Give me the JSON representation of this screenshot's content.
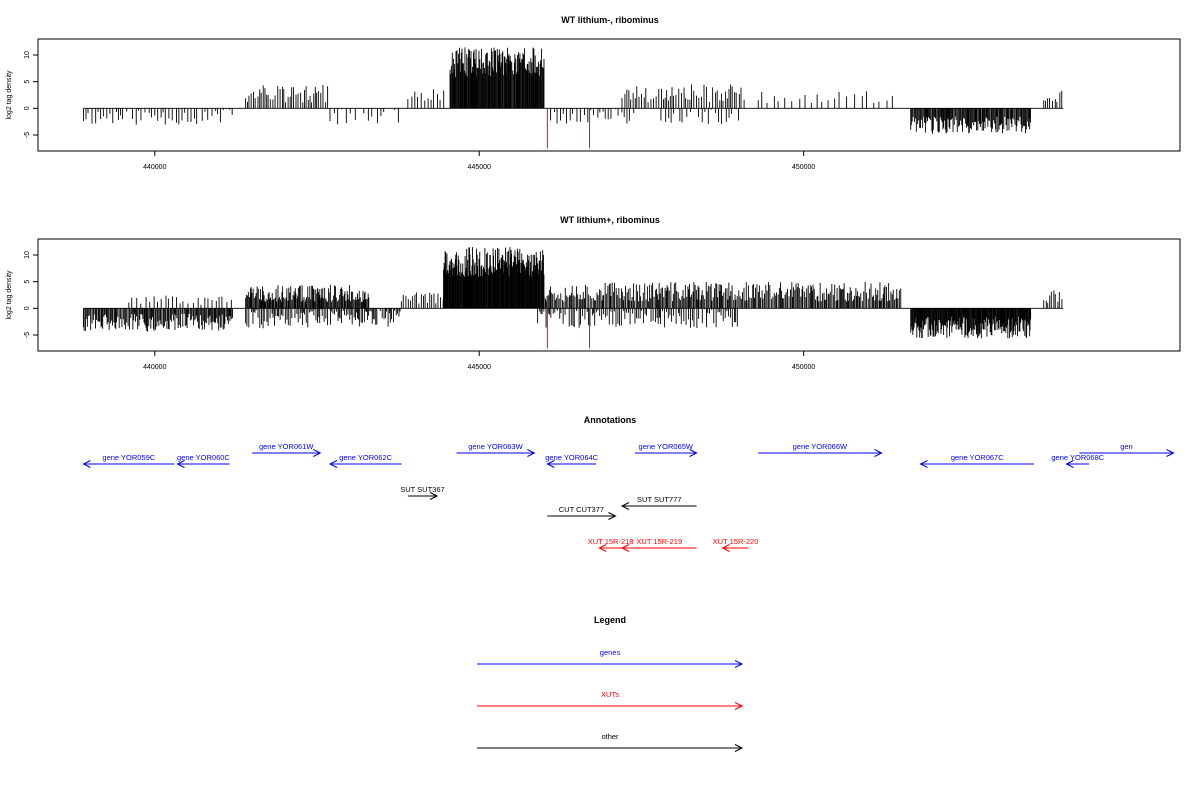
{
  "colors": {
    "genes": "#0000ff",
    "XUTs": "#ff0000",
    "other": "#000000",
    "signal": "#000000",
    "peak": "#ff0000"
  },
  "chart_data": [
    {
      "type": "bar",
      "title": "WT lithium-, ribominus",
      "xlabel": "",
      "ylabel": "log2 tag density",
      "x_ticks": [
        "440000",
        "445000",
        "450000"
      ],
      "y_ticks": [
        "-5",
        "0",
        "5",
        "10"
      ],
      "xlim": [
        438200,
        455800
      ],
      "ylim": [
        -8,
        13
      ],
      "segments": [
        {
          "from": 438900,
          "to": 441200,
          "lo": -4.2,
          "hi": 0,
          "step": 48,
          "seed": 11
        },
        {
          "from": 441400,
          "to": 442700,
          "lo": 0,
          "hi": 4.4,
          "step": 32,
          "seed": 12
        },
        {
          "from": 442700,
          "to": 443800,
          "lo": -4.2,
          "hi": 0,
          "step": 70,
          "seed": 13
        },
        {
          "from": 443900,
          "to": 444500,
          "lo": 0,
          "hi": 4,
          "step": 60,
          "seed": 14
        },
        {
          "from": 444550,
          "to": 446000,
          "lo": 4,
          "hi": 11.5,
          "step": 11,
          "seed": 15
        },
        {
          "from": 446100,
          "to": 447400,
          "lo": -4,
          "hi": 0,
          "step": 50,
          "seed": 16
        },
        {
          "from": 447200,
          "to": 449100,
          "lo": 0,
          "hi": 4.5,
          "step": 36,
          "seed": 17
        },
        {
          "from": 447800,
          "to": 449000,
          "lo": -4,
          "hi": 0,
          "step": 55,
          "seed": 18
        },
        {
          "from": 449300,
          "to": 451400,
          "lo": 0,
          "hi": 3.5,
          "step": 90,
          "seed": 19
        },
        {
          "from": 451650,
          "to": 453500,
          "lo": -6,
          "hi": -1.5,
          "step": 14,
          "seed": 20
        },
        {
          "from": 453700,
          "to": 454000,
          "lo": 0,
          "hi": 3.5,
          "step": 35,
          "seed": 21
        }
      ],
      "peaks": [
        {
          "x": 446050,
          "y": -7.5
        },
        {
          "x": 446700,
          "y": -7.5
        }
      ]
    },
    {
      "type": "bar",
      "title": "WT lithium+, ribominus",
      "xlabel": "",
      "ylabel": "log2 tag density",
      "x_ticks": [
        "440000",
        "445000",
        "450000"
      ],
      "y_ticks": [
        "-5",
        "0",
        "5",
        "10"
      ],
      "xlim": [
        438200,
        455800
      ],
      "ylim": [
        -8,
        13
      ],
      "segments": [
        {
          "from": 438900,
          "to": 441200,
          "lo": -5.5,
          "hi": -1,
          "step": 16,
          "seed": 31
        },
        {
          "from": 439600,
          "to": 441200,
          "lo": 0,
          "hi": 2.5,
          "step": 60,
          "seed": 32
        },
        {
          "from": 441400,
          "to": 443300,
          "lo": 0,
          "hi": 4.5,
          "step": 14,
          "seed": 33
        },
        {
          "from": 441400,
          "to": 443800,
          "lo": -5,
          "hi": 0,
          "step": 22,
          "seed": 34
        },
        {
          "from": 443800,
          "to": 444500,
          "lo": 0,
          "hi": 3,
          "step": 30,
          "seed": 35
        },
        {
          "from": 444450,
          "to": 446000,
          "lo": 4,
          "hi": 11.5,
          "step": 9,
          "seed": 36
        },
        {
          "from": 446000,
          "to": 451500,
          "lo": 0,
          "hi": 5,
          "step": 18,
          "seed": 37
        },
        {
          "from": 445900,
          "to": 449000,
          "lo": -5,
          "hi": 0,
          "step": 28,
          "seed": 38
        },
        {
          "from": 451650,
          "to": 453500,
          "lo": -7,
          "hi": -1.5,
          "step": 10,
          "seed": 39
        },
        {
          "from": 453700,
          "to": 454000,
          "lo": 0,
          "hi": 3.5,
          "step": 30,
          "seed": 40
        }
      ],
      "peaks": [
        {
          "x": 446050,
          "y": -7.5
        },
        {
          "x": 446700,
          "y": -7.5
        }
      ]
    }
  ],
  "annotations": {
    "title": "Annotations",
    "features": [
      {
        "label": "gene YOR059C",
        "type": "genes",
        "strand": "-",
        "row": 1,
        "start": 438900,
        "end": 440300
      },
      {
        "label": "gene YOR060C",
        "type": "genes",
        "strand": "-",
        "row": 1,
        "start": 440350,
        "end": 441150
      },
      {
        "label": "gene YOR061W",
        "type": "genes",
        "strand": "+",
        "row": 0,
        "start": 441500,
        "end": 442550
      },
      {
        "label": "gene YOR062C",
        "type": "genes",
        "strand": "-",
        "row": 1,
        "start": 442700,
        "end": 443800
      },
      {
        "label": "gene YOR063W",
        "type": "genes",
        "strand": "+",
        "row": 0,
        "start": 444650,
        "end": 445850
      },
      {
        "label": "gene YOR064C",
        "type": "genes",
        "strand": "-",
        "row": 1,
        "start": 446050,
        "end": 446800
      },
      {
        "label": "gene YOR065W",
        "type": "genes",
        "strand": "+",
        "row": 0,
        "start": 447400,
        "end": 448350
      },
      {
        "label": "gene YOR066W",
        "type": "genes",
        "strand": "+",
        "row": 0,
        "start": 449300,
        "end": 451200
      },
      {
        "label": "gene YOR067C",
        "type": "genes",
        "strand": "-",
        "row": 1,
        "start": 451800,
        "end": 453550
      },
      {
        "label": "gene YOR068C",
        "type": "genes",
        "strand": "-",
        "row": 1,
        "start": 454050,
        "end": 454400
      },
      {
        "label": "gen",
        "type": "genes",
        "strand": "+",
        "row": 0,
        "start": 454250,
        "end": 455700
      },
      {
        "label": "SUT SUT367",
        "type": "other",
        "strand": "+",
        "row": 2,
        "start": 443900,
        "end": 444350
      },
      {
        "label": "SUT SUT777",
        "type": "other",
        "strand": "-",
        "row": 3,
        "start": 447200,
        "end": 448350
      },
      {
        "label": "CUT CUT377",
        "type": "other",
        "strand": "+",
        "row": 4,
        "start": 446050,
        "end": 447100
      },
      {
        "label": "XUT 15R-218",
        "type": "XUTs",
        "strand": "-",
        "row": 5,
        "start": 446850,
        "end": 447200
      },
      {
        "label": "XUT 15R-219",
        "type": "XUTs",
        "strand": "-",
        "row": 5,
        "start": 447200,
        "end": 448350
      },
      {
        "label": "XUT 15R-220",
        "type": "XUTs",
        "strand": "-",
        "row": 5,
        "start": 448750,
        "end": 449150
      }
    ]
  },
  "legend": {
    "title": "Legend",
    "items": [
      {
        "label": "genes",
        "type": "genes"
      },
      {
        "label": "XUTs",
        "type": "XUTs"
      },
      {
        "label": "other",
        "type": "other"
      }
    ]
  }
}
